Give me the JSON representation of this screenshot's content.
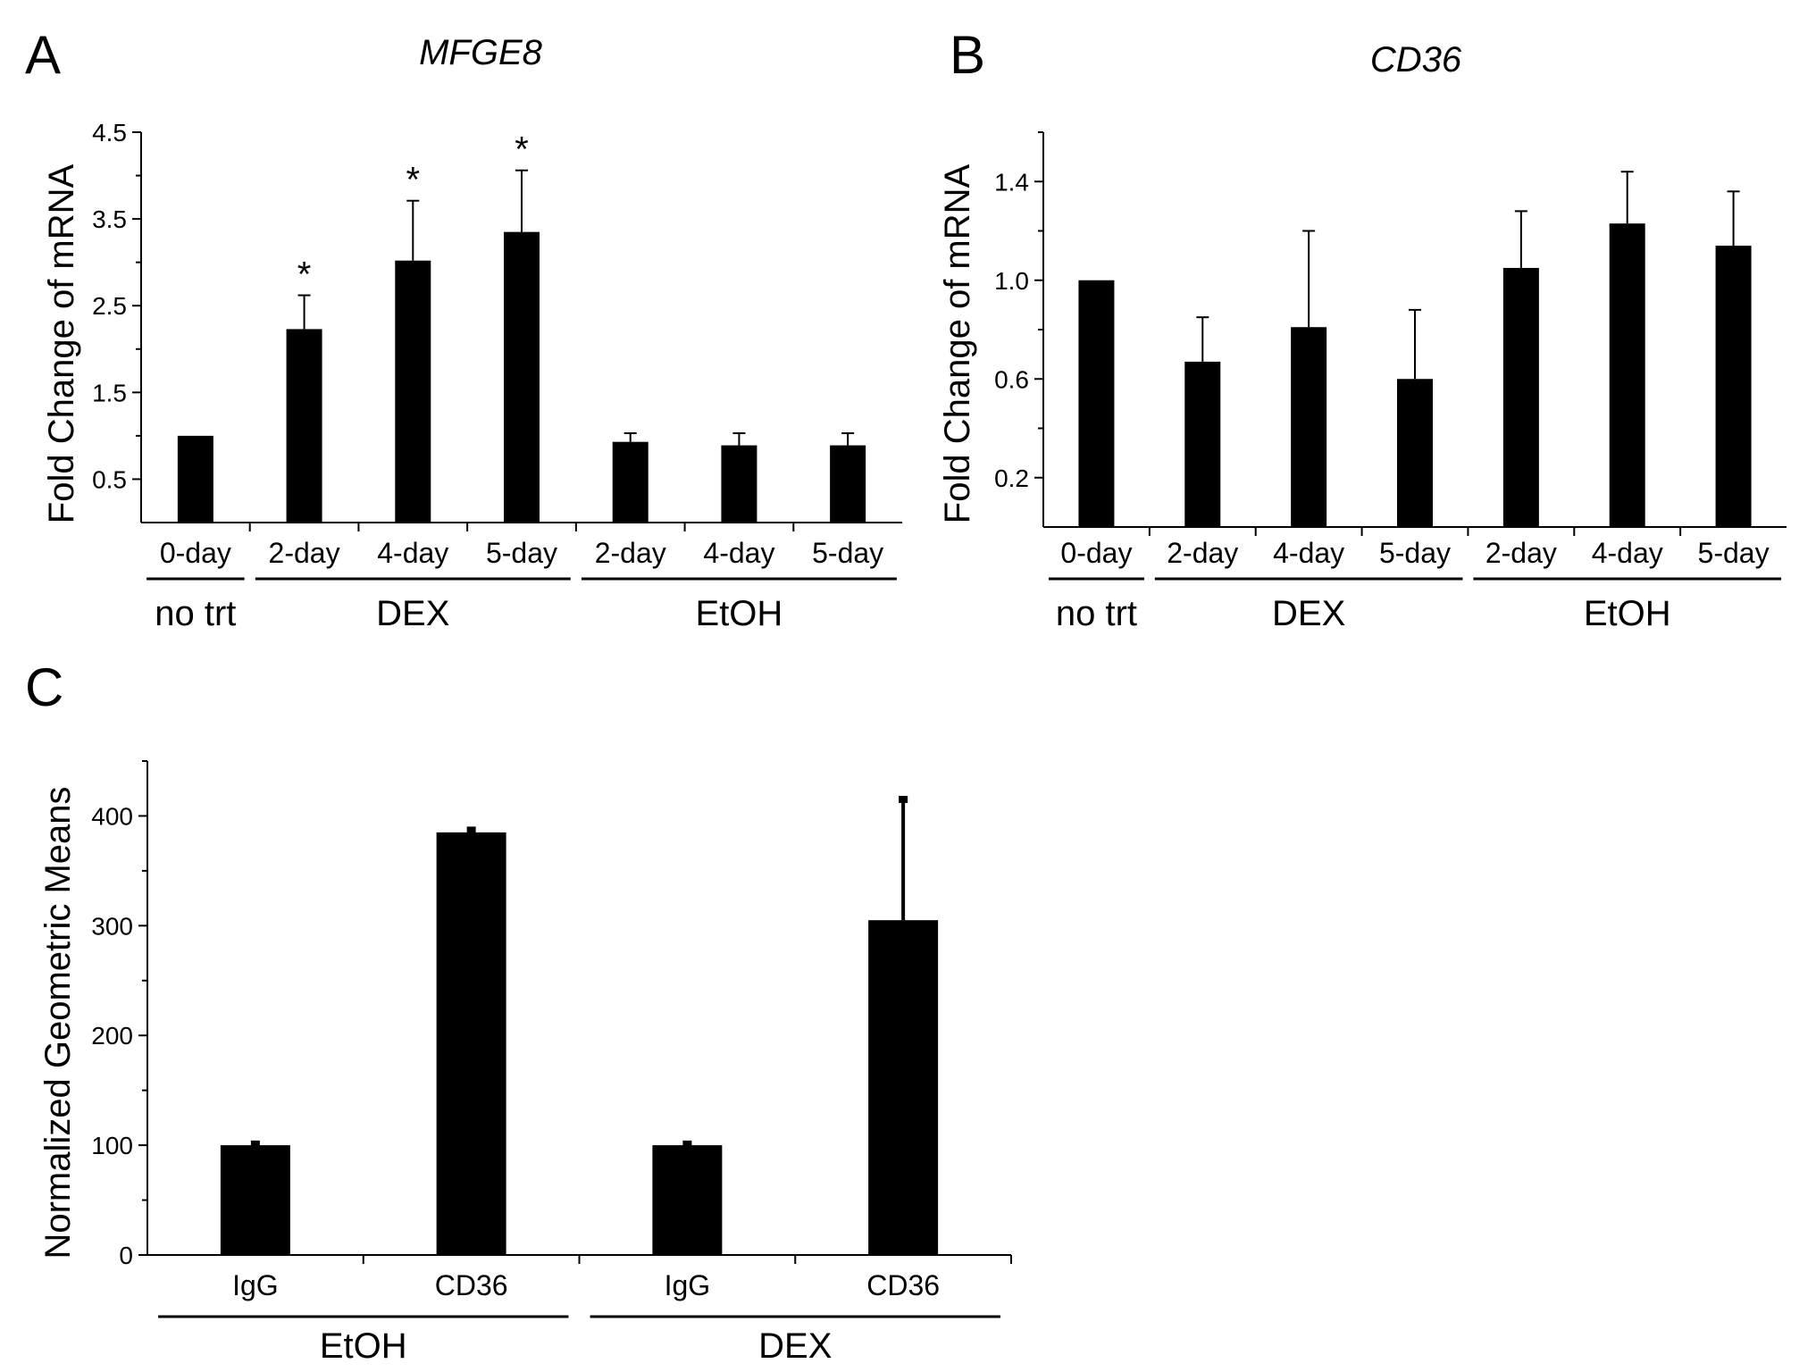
{
  "chart_data": [
    {
      "panel_label": "A",
      "type": "bar",
      "title": "MFGE8",
      "ylabel": "Fold Change of mRNA",
      "xlabel": "",
      "ylim": [
        0,
        4.5
      ],
      "yticks": [
        "0.5",
        "1.5",
        "2.5",
        "3.5",
        "4.5"
      ],
      "grid": false,
      "categories": [
        "0-day",
        "2-day",
        "4-day",
        "5-day",
        "2-day",
        "4-day",
        "5-day"
      ],
      "values": [
        1.0,
        2.23,
        3.02,
        3.35,
        0.93,
        0.89,
        0.89
      ],
      "errors": [
        0.0,
        0.39,
        0.69,
        0.71,
        0.1,
        0.14,
        0.14
      ],
      "annotations": [
        "",
        "*",
        "*",
        "*",
        "",
        "",
        ""
      ],
      "groups": [
        {
          "label": "no trt",
          "from": 0,
          "to": 0
        },
        {
          "label": "DEX",
          "from": 1,
          "to": 3
        },
        {
          "label": "EtOH",
          "from": 4,
          "to": 6
        }
      ]
    },
    {
      "panel_label": "B",
      "type": "bar",
      "title": "CD36",
      "ylabel": "Fold Change of mRNA",
      "xlabel": "",
      "ylim": [
        0,
        1.6
      ],
      "yticks": [
        "0.2",
        "0.6",
        "1.0",
        "1.4"
      ],
      "grid": false,
      "categories": [
        "0-day",
        "2-day",
        "4-day",
        "5-day",
        "2-day",
        "4-day",
        "5-day"
      ],
      "values": [
        1.0,
        0.67,
        0.81,
        0.6,
        1.05,
        1.23,
        1.14
      ],
      "errors": [
        0.0,
        0.18,
        0.39,
        0.28,
        0.23,
        0.21,
        0.22
      ],
      "annotations": [
        "",
        "",
        "",
        "",
        "",
        "",
        ""
      ],
      "groups": [
        {
          "label": "no trt",
          "from": 0,
          "to": 0
        },
        {
          "label": "DEX",
          "from": 1,
          "to": 3
        },
        {
          "label": "EtOH",
          "from": 4,
          "to": 6
        }
      ]
    },
    {
      "panel_label": "C",
      "type": "bar",
      "title": "",
      "ylabel": "Normalized Geometric Means",
      "xlabel": "",
      "ylim": [
        0,
        450
      ],
      "yticks": [
        "0",
        "100",
        "200",
        "300",
        "400"
      ],
      "grid": false,
      "categories": [
        "IgG",
        "CD36",
        "IgG",
        "CD36"
      ],
      "values": [
        100,
        385,
        100,
        305
      ],
      "errors": [
        1,
        2,
        1,
        110
      ],
      "groups": [
        {
          "label": "EtOH",
          "from": 0,
          "to": 1
        },
        {
          "label": "DEX",
          "from": 2,
          "to": 3
        }
      ]
    }
  ]
}
